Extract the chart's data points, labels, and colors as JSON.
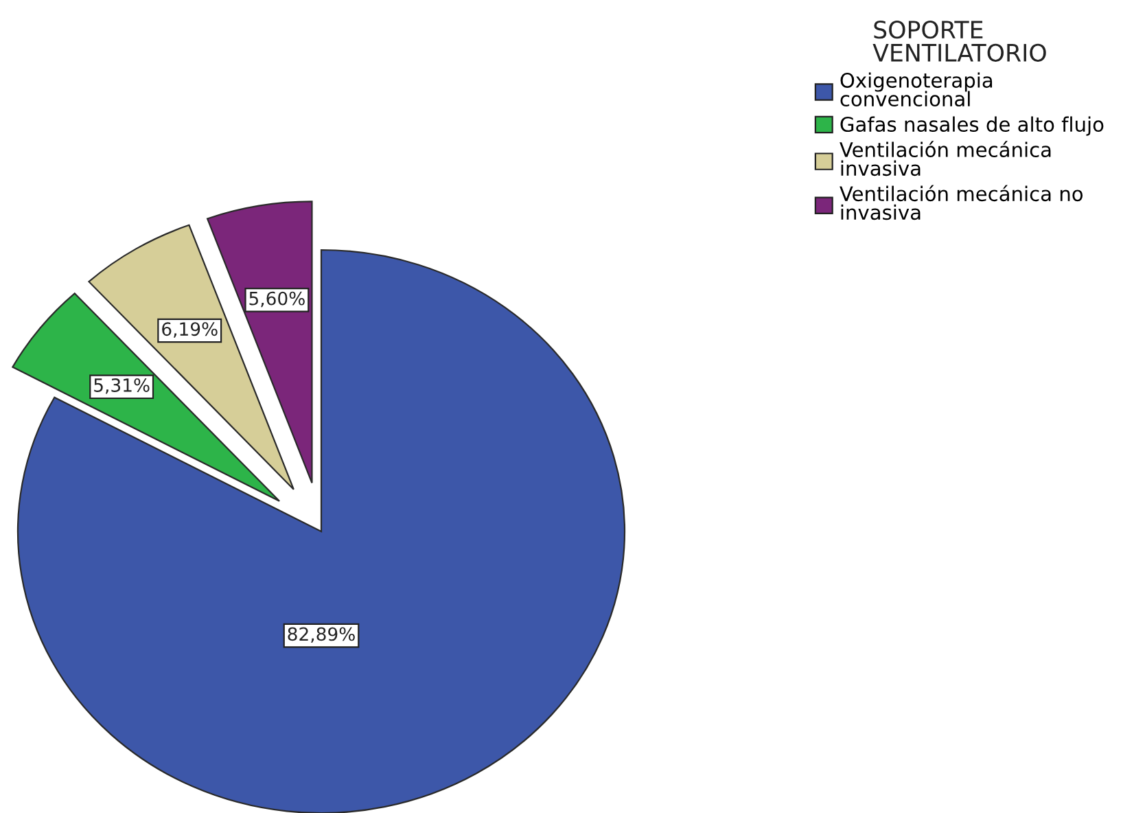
{
  "chart_data": {
    "type": "pie",
    "legend_title": "SOPORTE\nVENTILATORIO",
    "categories": [
      "Oxigenoterapia\nconvencional",
      "Gafas nasales de alto flujo",
      "Ventilación mecánica\ninvasiva",
      "Ventilación mecánica no\ninvasiva"
    ],
    "values": [
      82.89,
      5.31,
      6.19,
      5.6
    ],
    "colors": [
      "#3d57a9",
      "#2db449",
      "#d6ce98",
      "#7b267a"
    ],
    "value_labels": [
      "82,89%",
      "5,31%",
      "6,19%",
      "5,60%"
    ],
    "legend": "top right"
  }
}
